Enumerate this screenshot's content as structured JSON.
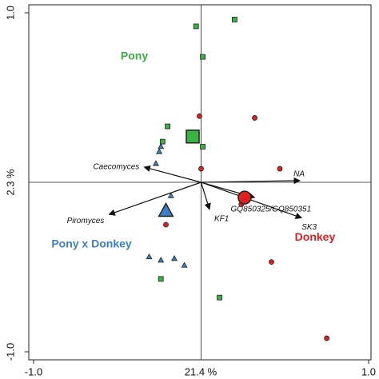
{
  "chart_data": {
    "type": "scatter",
    "xlabel": "21.4 %",
    "ylabel": "2.3 %",
    "xlim": [
      -1.0,
      1.0
    ],
    "ylim": [
      -1.0,
      1.0
    ],
    "xticks": [
      {
        "value": -1.0,
        "label": "-1.0"
      },
      {
        "value": 1.0,
        "label": "1.0"
      }
    ],
    "yticks": [
      {
        "value": -1.0,
        "label": "-1.0"
      },
      {
        "value": 1.0,
        "label": "1.0"
      }
    ],
    "series": [
      {
        "name": "Pony",
        "color": "#3cb043",
        "marker": "square",
        "x": [
          0.2,
          -0.03,
          0.01,
          -0.2,
          -0.23,
          0.01,
          0.11,
          -0.24
        ],
        "y": [
          0.96,
          0.92,
          0.74,
          0.33,
          0.24,
          0.21,
          -0.68,
          -0.57
        ],
        "centroid": {
          "x": -0.05,
          "y": 0.27
        }
      },
      {
        "name": "Donkey",
        "color": "#e02020",
        "marker": "circle",
        "x": [
          -0.01,
          0.32,
          0.0,
          0.47,
          0.24,
          -0.21,
          0.42,
          0.75
        ],
        "y": [
          0.39,
          0.38,
          0.08,
          0.08,
          -0.13,
          -0.25,
          -0.47,
          -0.92
        ],
        "centroid": {
          "x": 0.26,
          "y": -0.09
        }
      },
      {
        "name": "Pony x Donkey",
        "color": "#3b7fc4",
        "marker": "triangle",
        "x": [
          -0.24,
          -0.25,
          -0.27,
          -0.18,
          -0.31,
          -0.24,
          -0.16,
          -0.1
        ],
        "y": [
          0.21,
          0.18,
          0.11,
          -0.08,
          -0.44,
          -0.46,
          -0.45,
          -0.49
        ],
        "centroid": {
          "x": -0.21,
          "y": -0.17
        }
      }
    ],
    "vectors": [
      {
        "label": "Caecomyces",
        "x": -0.34,
        "y": 0.09
      },
      {
        "label": "Piromyces",
        "x": -0.55,
        "y": -0.19
      },
      {
        "label": "KF1",
        "x": 0.05,
        "y": -0.16
      },
      {
        "label": "NA",
        "x": 0.59,
        "y": 0.01
      },
      {
        "label": "GQ850325/GQ850351",
        "x": 0.32,
        "y": -0.09
      },
      {
        "label": "SK3",
        "x": 0.6,
        "y": -0.21
      }
    ]
  }
}
